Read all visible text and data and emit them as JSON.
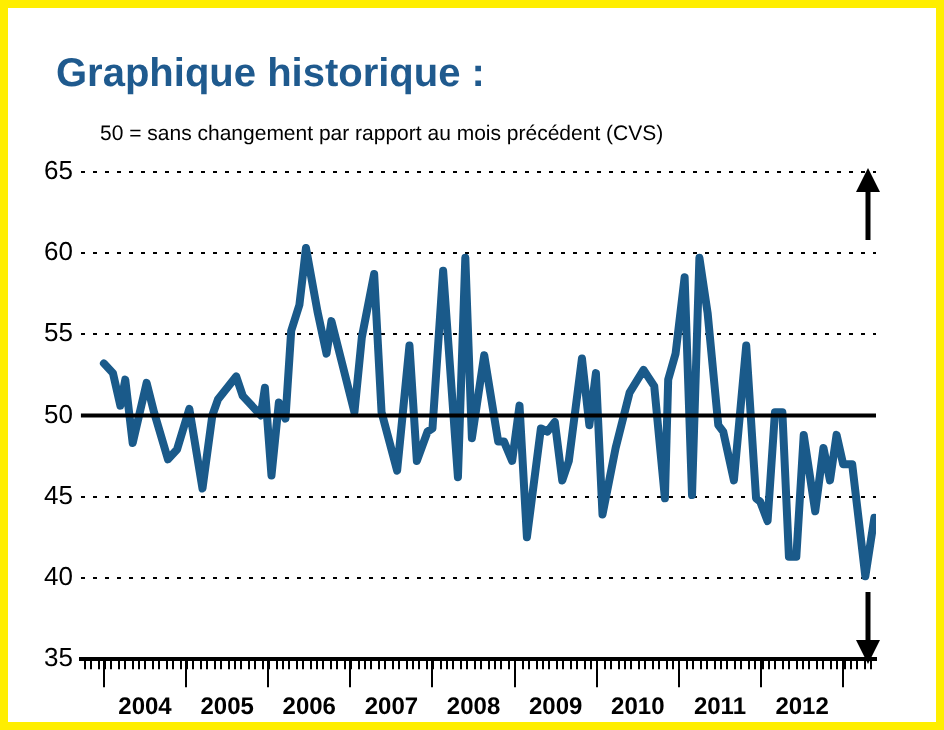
{
  "chart_data": {
    "type": "line",
    "title": "Graphique historique :",
    "subtitle": "50 = sans changement par rapport au mois précédent (CVS)",
    "x": [
      2004.0,
      2004.11,
      2004.2,
      2004.26,
      2004.35,
      2004.52,
      2004.61,
      2004.78,
      2004.89,
      2005.04,
      2005.2,
      2005.32,
      2005.39,
      2005.61,
      2005.69,
      2005.91,
      2005.96,
      2006.04,
      2006.13,
      2006.21,
      2006.28,
      2006.38,
      2006.46,
      2006.6,
      2006.71,
      2006.77,
      2006.9,
      2007.05,
      2007.14,
      2007.29,
      2007.38,
      2007.57,
      2007.72,
      2007.81,
      2007.94,
      2008.0,
      2008.13,
      2008.31,
      2008.4,
      2008.48,
      2008.63,
      2008.8,
      2008.87,
      2008.97,
      2009.06,
      2009.15,
      2009.32,
      2009.4,
      2009.49,
      2009.58,
      2009.66,
      2009.82,
      2009.91,
      2009.99,
      2010.07,
      2010.23,
      2010.4,
      2010.57,
      2010.7,
      2010.83,
      2010.87,
      2010.96,
      2011.07,
      2011.16,
      2011.25,
      2011.35,
      2011.48,
      2011.54,
      2011.67,
      2011.82,
      2011.94,
      2011.99,
      2012.08,
      2012.17,
      2012.26,
      2012.34,
      2012.43,
      2012.52,
      2012.66,
      2012.76,
      2012.84,
      2012.92,
      2013.0,
      2013.11,
      2013.27,
      2013.38
    ],
    "series": [
      {
        "color": "#1a5a8a",
        "values": [
          53.2,
          52.6,
          50.6,
          52.2,
          48.3,
          52.0,
          50.2,
          47.3,
          47.9,
          50.4,
          45.5,
          50.0,
          51.0,
          52.4,
          51.2,
          50.0,
          51.7,
          46.3,
          50.8,
          49.8,
          55.2,
          56.8,
          60.3,
          56.4,
          53.8,
          55.8,
          53.2,
          50.2,
          54.8,
          58.7,
          50.2,
          46.6,
          54.3,
          47.2,
          49.0,
          49.2,
          58.9,
          46.2,
          59.7,
          48.6,
          53.7,
          48.4,
          48.4,
          47.2,
          50.6,
          42.5,
          49.2,
          49.0,
          49.6,
          46.0,
          47.2,
          53.5,
          49.4,
          52.6,
          43.9,
          48.0,
          51.4,
          52.8,
          51.8,
          44.9,
          52.2,
          53.8,
          58.5,
          45.1,
          59.7,
          56.3,
          49.4,
          49.0,
          46.0,
          54.3,
          44.9,
          44.7,
          43.5,
          50.2,
          50.2,
          41.3,
          41.3,
          48.8,
          44.1,
          48.0,
          46.0,
          48.8,
          47.0,
          47.0,
          40.1,
          43.7
        ]
      }
    ],
    "xlim": [
      2003.72,
      2013.4
    ],
    "xticks": [
      {
        "value": 2004,
        "label": null
      },
      {
        "value": 2004.5,
        "label": "2004"
      },
      {
        "value": 2005,
        "label": null
      },
      {
        "value": 2005.5,
        "label": "2005"
      },
      {
        "value": 2006,
        "label": null
      },
      {
        "value": 2006.5,
        "label": "2006"
      },
      {
        "value": 2007,
        "label": null
      },
      {
        "value": 2007.5,
        "label": "2007"
      },
      {
        "value": 2008,
        "label": null
      },
      {
        "value": 2008.5,
        "label": "2008"
      },
      {
        "value": 2009,
        "label": null
      },
      {
        "value": 2009.5,
        "label": "2009"
      },
      {
        "value": 2010,
        "label": null
      },
      {
        "value": 2010.5,
        "label": "2010"
      },
      {
        "value": 2011,
        "label": null
      },
      {
        "value": 2011.5,
        "label": "2011"
      },
      {
        "value": 2012,
        "label": null
      },
      {
        "value": 2012.5,
        "label": "2012"
      },
      {
        "value": 2013,
        "label": null
      }
    ],
    "ylim": [
      35,
      65
    ],
    "yticks": [
      35,
      40,
      45,
      50,
      55,
      60,
      65
    ],
    "grid": "y",
    "marker": "none",
    "line_style": "solid",
    "ref_lines": [
      {
        "axis": "y",
        "value": 50,
        "color": "#000000",
        "line_style": "solid"
      }
    ]
  }
}
